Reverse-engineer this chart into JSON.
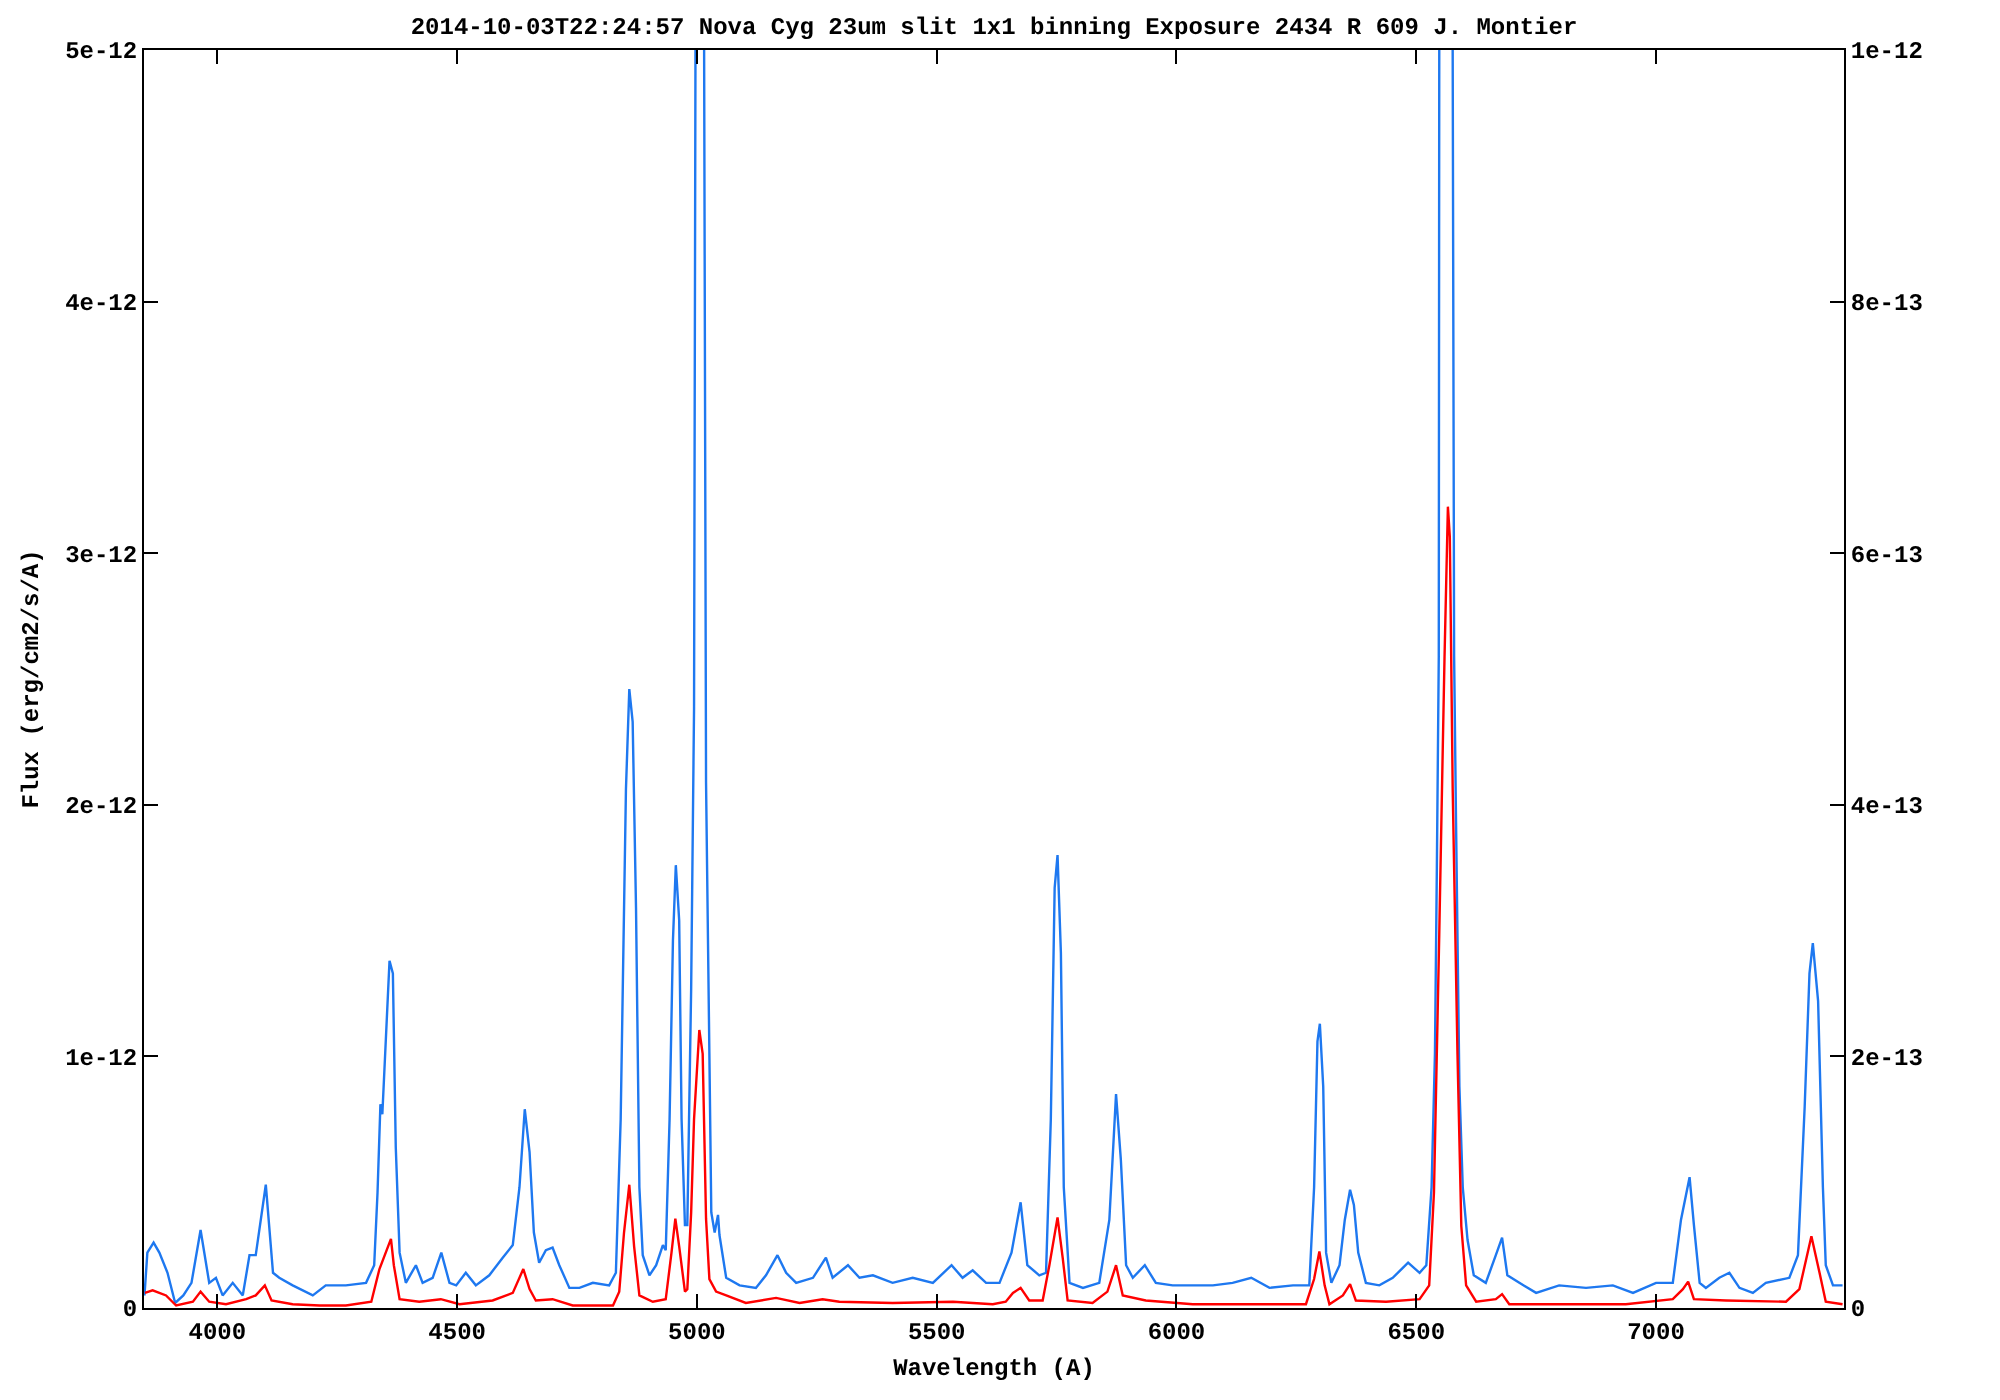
{
  "chart_data": {
    "type": "line",
    "title": "2014-10-03T22:24:57 Nova Cyg 23um slit 1x1 binning Exposure 2434 R 609 J. Montier",
    "xlabel": "Wavelength (A)",
    "ylabel": "Flux (erg/cm2/s/A)",
    "xlim": [
      3847,
      7392
    ],
    "xticks": [
      4000,
      4500,
      5000,
      5500,
      6000,
      6500,
      7000
    ],
    "ylim": [
      0,
      5e-12
    ],
    "yticks": [
      0,
      {
        "value": 1e-12,
        "label": "1e-12"
      },
      {
        "value": 2e-12,
        "label": "2e-12"
      },
      {
        "value": 3e-12,
        "label": "3e-12"
      },
      {
        "value": 4e-12,
        "label": "4e-12"
      },
      {
        "value": 5e-12,
        "label": "5e-12"
      }
    ],
    "y2lim": [
      0,
      1e-12
    ],
    "y2ticks": [
      0,
      {
        "value": 2e-13,
        "label": "2e-13"
      },
      {
        "value": 4e-13,
        "label": "4e-13"
      },
      {
        "value": 6e-13,
        "label": "6e-13"
      },
      {
        "value": 8e-13,
        "label": "8e-13"
      },
      {
        "value": 1e-12,
        "label": "1e-12"
      }
    ],
    "series": [
      {
        "color": "#1e78f0",
        "x": [
          3848,
          3854,
          3867,
          3879,
          3896,
          3912,
          3929,
          3946,
          3965,
          3983,
          3997,
          4011,
          4032,
          4053,
          4067,
          4080,
          4101,
          4116,
          4129,
          4157,
          4199,
          4226,
          4268,
          4310,
          4327,
          4334,
          4340,
          4344,
          4359,
          4366,
          4372,
          4380,
          4393,
          4414,
          4428,
          4449,
          4467,
          4484,
          4498,
          4518,
          4539,
          4567,
          4595,
          4616,
          4630,
          4641,
          4651,
          4660,
          4671,
          4685,
          4699,
          4713,
          4734,
          4755,
          4783,
          4817,
          4831,
          4841,
          4852,
          4859,
          4866,
          4873,
          4880,
          4887,
          4901,
          4915,
          4929,
          4935,
          4943,
          4950,
          4956,
          4963,
          4968,
          4975,
          4980,
          4988,
          4994,
          4997,
          5006,
          5015,
          5019,
          5026,
          5030,
          5037,
          5044,
          5047,
          5061,
          5089,
          5123,
          5144,
          5168,
          5186,
          5207,
          5242,
          5269,
          5283,
          5315,
          5339,
          5367,
          5408,
          5450,
          5492,
          5531,
          5554,
          5575,
          5603,
          5631,
          5656,
          5675,
          5689,
          5714,
          5728,
          5738,
          5746,
          5752,
          5759,
          5765,
          5777,
          5805,
          5839,
          5860,
          5874,
          5884,
          5895,
          5909,
          5934,
          5957,
          5992,
          6076,
          6117,
          6156,
          6194,
          6243,
          6277,
          6287,
          6294,
          6299,
          6306,
          6312,
          6323,
          6340,
          6351,
          6362,
          6370,
          6379,
          6395,
          6423,
          6451,
          6483,
          6507,
          6521,
          6532,
          6539,
          6543,
          6547,
          6548,
          6562,
          6576,
          6579,
          6583,
          6590,
          6597,
          6607,
          6620,
          6645,
          6666,
          6679,
          6690,
          6715,
          6750,
          6798,
          6854,
          6910,
          6952,
          7000,
          7035,
          7052,
          7070,
          7079,
          7091,
          7104,
          7132,
          7153,
          7174,
          7202,
          7229,
          7278,
          7296,
          7310,
          7320,
          7327,
          7338,
          7348,
          7354,
          7369,
          7389
        ],
        "values": [
          5e-14,
          2.2e-13,
          2.6e-13,
          2.2e-13,
          1.4e-13,
          2e-14,
          5e-14,
          1e-13,
          3.1e-13,
          1e-13,
          1.2e-13,
          5e-14,
          1e-13,
          5e-14,
          2.1e-13,
          2.1e-13,
          4.9e-13,
          1.4e-13,
          1.2e-13,
          9e-14,
          5e-14,
          9e-14,
          9e-14,
          1e-13,
          1.7e-13,
          4.6e-13,
          8.1e-13,
          7.7e-13,
          1.38e-12,
          1.33e-12,
          6.4e-13,
          2.2e-13,
          1e-13,
          1.7e-13,
          1e-13,
          1.2e-13,
          2.2e-13,
          1e-13,
          9e-14,
          1.4e-13,
          9e-14,
          1.3e-13,
          2e-13,
          2.5e-13,
          4.8e-13,
          7.9e-13,
          6.2e-13,
          3e-13,
          1.8e-13,
          2.3e-13,
          2.4e-13,
          1.7e-13,
          8e-14,
          8e-14,
          1e-13,
          9e-14,
          1.4e-13,
          7.5e-13,
          2.06e-12,
          2.46e-12,
          2.33e-12,
          1.59e-12,
          4.8e-13,
          2.1e-13,
          1.3e-13,
          1.7e-13,
          2.5e-13,
          2.3e-13,
          7.5e-13,
          1.46e-12,
          1.76e-12,
          1.54e-12,
          7.5e-13,
          3.3e-13,
          3.3e-13,
          1.27e-12,
          2.38e-12,
          5e-12,
          null,
          5e-12,
          2.09e-12,
          1.01e-12,
          3.8e-13,
          3e-13,
          3.7e-13,
          2.9e-13,
          1.2e-13,
          9e-14,
          8e-14,
          1.3e-13,
          2.1e-13,
          1.4e-13,
          1e-13,
          1.2e-13,
          2e-13,
          1.2e-13,
          1.7e-13,
          1.2e-13,
          1.3e-13,
          1e-13,
          1.2e-13,
          1e-13,
          1.7e-13,
          1.2e-13,
          1.5e-13,
          1e-13,
          1e-13,
          2.2e-13,
          4.2e-13,
          1.7e-13,
          1.3e-13,
          1.4e-13,
          7.5e-13,
          1.67e-12,
          1.8e-12,
          1.41e-12,
          4.8e-13,
          1e-13,
          8e-14,
          1e-13,
          3.5e-13,
          8.5e-13,
          5.9e-13,
          1.7e-13,
          1.2e-13,
          1.7e-13,
          1e-13,
          9e-14,
          9e-14,
          1e-13,
          1.2e-13,
          8e-14,
          9e-14,
          9e-14,
          4.8e-13,
          1.06e-12,
          1.13e-12,
          8.8e-13,
          2.2e-13,
          1e-13,
          1.7e-13,
          3.5e-13,
          4.7e-13,
          4.1e-13,
          2.2e-13,
          1e-13,
          9e-14,
          1.2e-13,
          1.8e-13,
          1.4e-13,
          1.7e-13,
          4.8e-13,
          1.01e-12,
          1.75e-12,
          2.59e-12,
          5e-12,
          null,
          5e-12,
          2.59e-12,
          1.93e-12,
          8.8e-13,
          4.8e-13,
          2.7e-13,
          1.3e-13,
          1e-13,
          2.1e-13,
          2.8e-13,
          1.3e-13,
          1e-13,
          6e-14,
          9e-14,
          8e-14,
          9e-14,
          6e-14,
          1e-13,
          1e-13,
          3.5e-13,
          5.2e-13,
          3.3e-13,
          1e-13,
          8e-14,
          1.2e-13,
          1.4e-13,
          8e-14,
          6e-14,
          1e-13,
          1.2e-13,
          2.1e-13,
          8e-13,
          1.33e-12,
          1.45e-12,
          1.22e-12,
          4.8e-13,
          1.7e-13,
          9e-14,
          9e-14
        ]
      },
      {
        "color": "#ff0000",
        "axis": "y2",
        "x": [
          3849,
          3865,
          3893,
          3914,
          3949,
          3965,
          3983,
          4018,
          4060,
          4080,
          4099,
          4113,
          4157,
          4213,
          4268,
          4321,
          4338,
          4362,
          4368,
          4380,
          4421,
          4466,
          4505,
          4574,
          4616,
          4638,
          4651,
          4664,
          4699,
          4741,
          4825,
          4838,
          4848,
          4859,
          4869,
          4880,
          4908,
          4935,
          4947,
          4955,
          4963,
          4975,
          4980,
          4988,
          4994,
          5005,
          5012,
          5019,
          5026,
          5040,
          5061,
          5102,
          5165,
          5214,
          5262,
          5297,
          5408,
          5534,
          5617,
          5644,
          5659,
          5675,
          5693,
          5721,
          5735,
          5752,
          5763,
          5773,
          5825,
          5856,
          5874,
          5888,
          5936,
          6034,
          6159,
          6270,
          6287,
          6298,
          6309,
          6319,
          6347,
          6362,
          6374,
          6437,
          6507,
          6527,
          6537,
          6548,
          6555,
          6559,
          6566,
          6570,
          6576,
          6586,
          6594,
          6604,
          6625,
          6666,
          6679,
          6694,
          6799,
          6937,
          7035,
          7056,
          7067,
          7079,
          7146,
          7271,
          7299,
          7324,
          7341,
          7354,
          7389
        ],
        "values": [
          1.2e-14,
          1.4e-14,
          1e-14,
          2e-15,
          5e-15,
          1.3e-14,
          5e-15,
          3e-15,
          7e-15,
          1e-14,
          1.8e-14,
          6e-15,
          3e-15,
          2e-15,
          2e-15,
          5e-15,
          3.1e-14,
          5.5e-14,
          3.4e-14,
          7e-15,
          5e-15,
          7e-15,
          3e-15,
          6e-15,
          1.2e-14,
          3.1e-14,
          1.5e-14,
          6e-15,
          7e-15,
          2e-15,
          2e-15,
          1.3e-14,
          6e-14,
          9.8e-14,
          4.9e-14,
          1e-14,
          5e-15,
          7e-15,
          4.4e-14,
          7.1e-14,
          4.9e-14,
          1.3e-14,
          1.5e-14,
          7.6e-14,
          1.5e-13,
          2.21e-13,
          2.02e-13,
          7.1e-14,
          2.3e-14,
          1.3e-14,
          1e-14,
          4e-15,
          8e-15,
          4e-15,
          7e-15,
          5e-15,
          4e-15,
          5e-15,
          3e-15,
          5e-15,
          1.2e-14,
          1.6e-14,
          6e-15,
          6e-15,
          3.4e-14,
          7.2e-14,
          3.9e-14,
          6e-15,
          4e-15,
          1.3e-14,
          3.4e-14,
          1e-14,
          6e-15,
          3e-15,
          3e-15,
          3e-15,
          2.3e-14,
          4.5e-14,
          1.8e-14,
          3e-15,
          1e-14,
          1.9e-14,
          6e-15,
          5e-15,
          7e-15,
          1.8e-14,
          9.2e-14,
          2.97e-13,
          4.39e-13,
          5.18e-13,
          6.37e-13,
          6.13e-13,
          4.13e-13,
          2.02e-13,
          6.5e-14,
          1.8e-14,
          5e-15,
          7e-15,
          1.1e-14,
          3e-15,
          3e-15,
          3e-15,
          7e-15,
          1.5e-14,
          2.1e-14,
          7e-15,
          6e-15,
          5e-15,
          1.5e-14,
          5.7e-14,
          2.8e-14,
          5e-15,
          3e-15
        ]
      }
    ]
  }
}
